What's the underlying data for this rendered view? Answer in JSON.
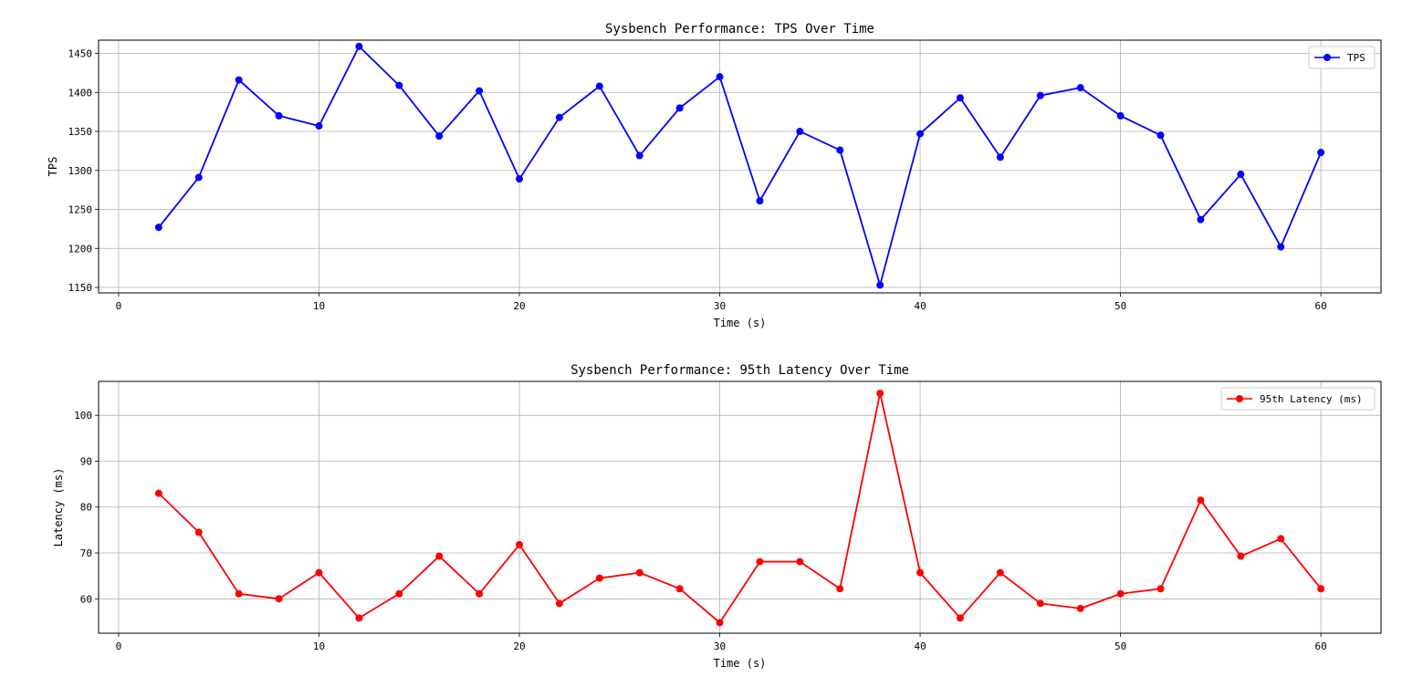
{
  "chart_data": [
    {
      "type": "line",
      "title": "Sysbench Performance: TPS Over Time",
      "xlabel": "Time (s)",
      "ylabel": "TPS",
      "xlim": [
        -1,
        63
      ],
      "ylim": [
        1143,
        1467
      ],
      "xticks": [
        0,
        10,
        20,
        30,
        40,
        50,
        60
      ],
      "yticks": [
        1150,
        1200,
        1250,
        1300,
        1350,
        1400,
        1450
      ],
      "grid": true,
      "legend_position": "top-right",
      "x": [
        2,
        4,
        6,
        8,
        10,
        12,
        14,
        16,
        18,
        20,
        22,
        24,
        26,
        28,
        30,
        32,
        34,
        36,
        38,
        40,
        42,
        44,
        46,
        48,
        50,
        52,
        54,
        56,
        58,
        60
      ],
      "series": [
        {
          "name": "TPS",
          "color": "#0000ff",
          "values": [
            1227,
            1291,
            1416,
            1370,
            1357,
            1459,
            1409,
            1344,
            1402,
            1289,
            1368,
            1408,
            1319,
            1380,
            1420,
            1261,
            1350,
            1326,
            1153,
            1347,
            1393,
            1317,
            1396,
            1406,
            1370,
            1345,
            1237,
            1295,
            1202,
            1323
          ]
        }
      ]
    },
    {
      "type": "line",
      "title": "Sysbench Performance: 95th Latency Over Time",
      "xlabel": "Time (s)",
      "ylabel": "Latency (ms)",
      "xlim": [
        -1,
        63
      ],
      "ylim": [
        52.5,
        107.4
      ],
      "xticks": [
        0,
        10,
        20,
        30,
        40,
        50,
        60
      ],
      "yticks": [
        60,
        70,
        80,
        90,
        100
      ],
      "grid": true,
      "legend_position": "top-right",
      "x": [
        2,
        4,
        6,
        8,
        10,
        12,
        14,
        16,
        18,
        20,
        22,
        24,
        26,
        28,
        30,
        32,
        34,
        36,
        38,
        40,
        42,
        44,
        46,
        48,
        50,
        52,
        54,
        56,
        58,
        60
      ],
      "series": [
        {
          "name": "95th Latency (ms)",
          "color": "#ff0000",
          "values": [
            83.0,
            74.5,
            61.1,
            60.0,
            65.7,
            55.8,
            61.1,
            69.3,
            61.1,
            71.8,
            59.0,
            64.5,
            65.7,
            62.2,
            54.8,
            68.1,
            68.1,
            62.2,
            104.8,
            65.7,
            55.8,
            65.7,
            59.0,
            57.9,
            61.1,
            62.2,
            81.5,
            69.3,
            73.1,
            62.2
          ]
        }
      ]
    }
  ]
}
